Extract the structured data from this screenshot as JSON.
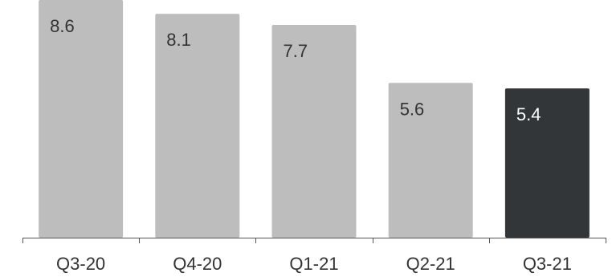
{
  "chart_data": {
    "type": "bar",
    "categories": [
      "Q3-20",
      "Q4-20",
      "Q1-21",
      "Q2-21",
      "Q3-21"
    ],
    "values": [
      8.6,
      8.1,
      7.7,
      5.6,
      5.4
    ],
    "value_labels": [
      "8.6",
      "8.1",
      "7.7",
      "5.6",
      "5.4"
    ],
    "highlight_index": 4,
    "ylim": [
      0,
      8.6
    ],
    "grid": false,
    "colors": {
      "bar": "#bdbdbd",
      "highlight": "#333638",
      "label": "#333333",
      "highlight_label": "#ffffff",
      "axis": "#555555"
    }
  }
}
